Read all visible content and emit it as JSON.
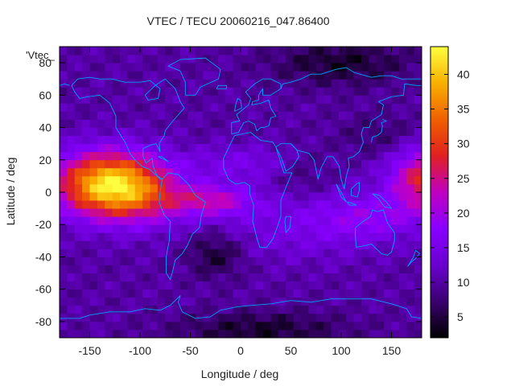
{
  "chart_data": {
    "type": "heatmap",
    "title": "VTEC / TECU 20060216_047.86400",
    "xlabel": "Longitude / deg",
    "ylabel": "Latitude / deg",
    "legend_label": "'Vtec_",
    "xlim": [
      -180,
      180
    ],
    "ylim": [
      -90,
      90
    ],
    "x_ticks": [
      -150,
      -100,
      -50,
      0,
      50,
      100,
      150
    ],
    "y_ticks": [
      -80,
      -60,
      -40,
      -20,
      0,
      20,
      40,
      60,
      80
    ],
    "colorbar": {
      "range": [
        2,
        44
      ],
      "ticks": [
        5,
        10,
        15,
        20,
        25,
        30,
        35,
        40
      ],
      "palette": "black-purple-red-orange-yellow",
      "colors": [
        "#000000",
        "#3a0070",
        "#6a00d0",
        "#8800ff",
        "#c000c0",
        "#e02020",
        "#f06000",
        "#f8b000",
        "#ffff40"
      ]
    },
    "grid": false,
    "features": {
      "coastline_color": "#00a0ff",
      "anomaly_high": [
        {
          "lon": -125,
          "lat": 0,
          "peak": 42
        },
        {
          "lon": 175,
          "lat": 5,
          "peak": 32
        }
      ],
      "secondary_band": {
        "lon": -20,
        "lat": 0,
        "value": 26
      },
      "lows": [
        {
          "lon": -25,
          "lat": -38,
          "value": 3
        },
        {
          "lon": 0,
          "lat": -85,
          "value": 3
        },
        {
          "lon": 100,
          "lat": 80,
          "value": 4
        }
      ]
    }
  }
}
